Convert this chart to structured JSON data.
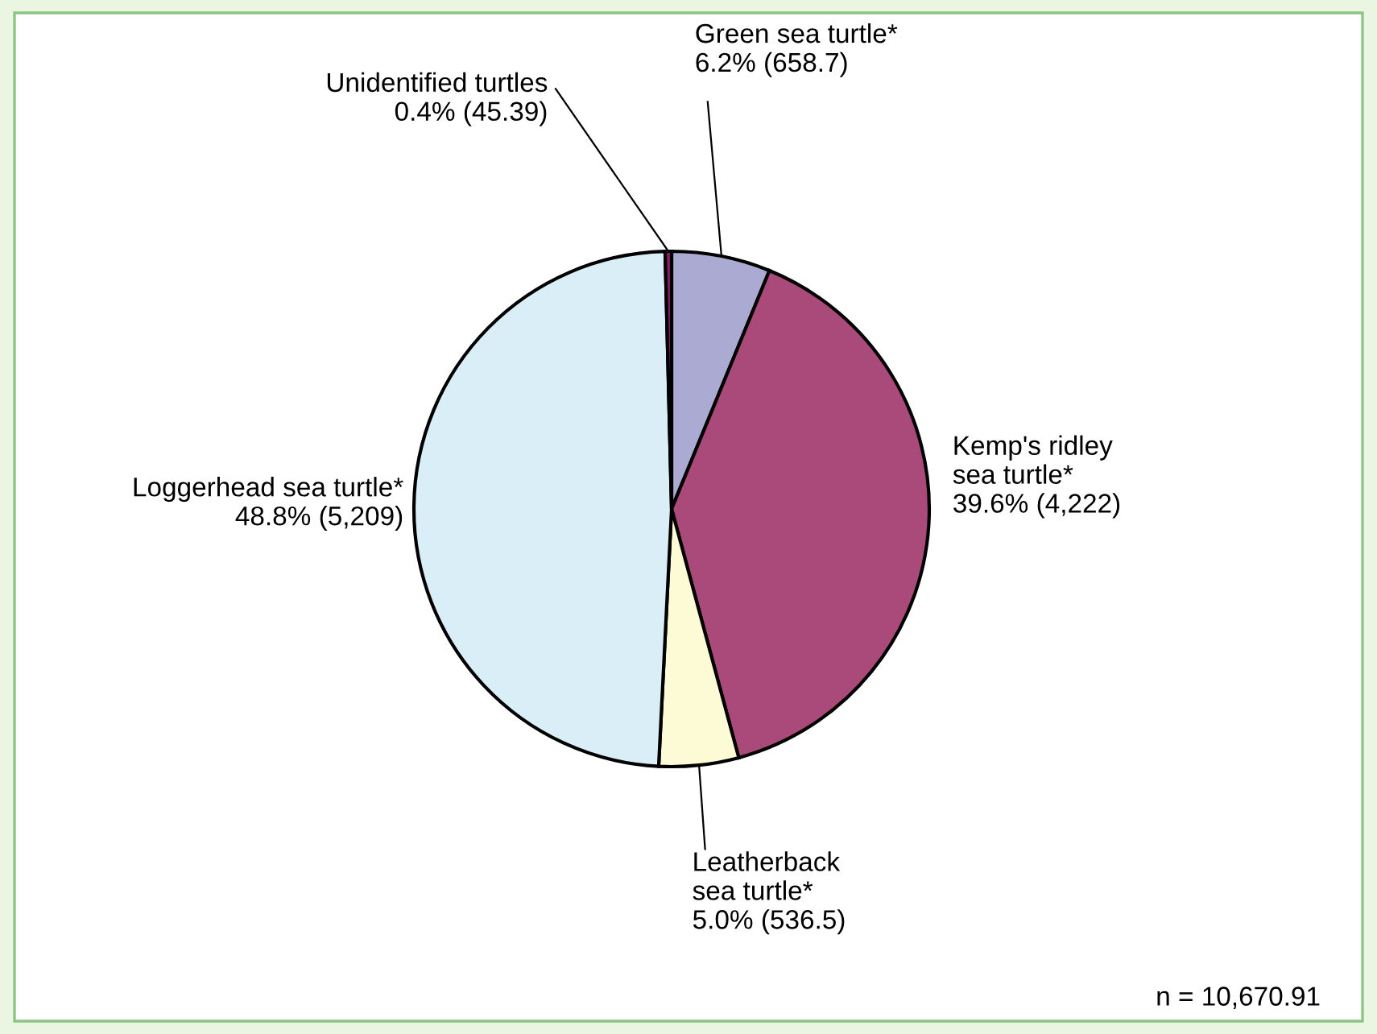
{
  "chart_data": {
    "type": "pie",
    "categories": [
      "Green sea turtle*",
      "Kemp's ridley\nsea turtle*",
      "Leatherback\nsea turtle*",
      "Loggerhead sea turtle*",
      "Unidentified turtles"
    ],
    "values": [
      6.2,
      39.6,
      5.0,
      48.8,
      0.4
    ],
    "value_labels": [
      "6.2% (658.7)",
      "39.6% (4,222)",
      "5.0% (536.5)",
      "48.8% (5,209)",
      "0.4% (45.39)"
    ],
    "colors": [
      "#aaaad2",
      "#a94a7b",
      "#fdfbd6",
      "#d9eef6",
      "#8b1c6b"
    ],
    "annotations": [
      "n = 10,670.91"
    ]
  }
}
